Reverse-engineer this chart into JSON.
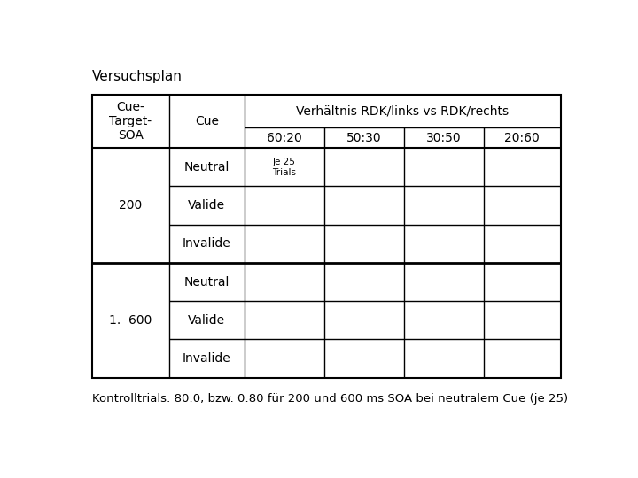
{
  "title": "Versuchsplan",
  "footer": "Kontrolltrials: 80:0, bzw. 0:80 für 200 und 600 ms SOA bei neutralem Cue (je 25)",
  "col_header_1": "Cue-\nTarget-\nSOA",
  "col_header_2": "Cue",
  "col_header_3": "Verhältnis RDK/links vs RDK/rechts",
  "ratio_cols": [
    "60:20",
    "50:30",
    "30:50",
    "20:60"
  ],
  "rows": [
    {
      "soa": "200",
      "cue": "Neutral",
      "note": "Je 25\nTrials"
    },
    {
      "soa": "200",
      "cue": "Valide",
      "note": ""
    },
    {
      "soa": "200",
      "cue": "Invalide",
      "note": ""
    },
    {
      "soa": "1.  600",
      "cue": "Neutral",
      "note": ""
    },
    {
      "soa": "1.  600",
      "cue": "Valide",
      "note": ""
    },
    {
      "soa": "1.  600",
      "cue": "Invalide",
      "note": ""
    }
  ],
  "bg_color": "#ffffff",
  "border_color": "#000000",
  "font_size_title": 11,
  "font_size_header": 10,
  "font_size_cell": 10,
  "font_size_note": 7.5,
  "font_size_footer": 9.5
}
